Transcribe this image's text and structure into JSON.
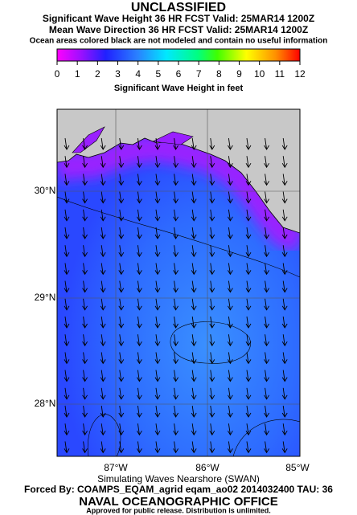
{
  "header": {
    "classification": "UNCLASSIFIED",
    "line1": "Significant Wave Height 36 HR FCST Valid: 25MAR14 1200Z",
    "line2": "Mean Wave Direction 36 HR FCST Valid: 25MAR14 1200Z",
    "note": "Ocean areas colored black are not modeled and contain no useful information"
  },
  "colorbar": {
    "ticks": [
      0,
      1,
      2,
      3,
      4,
      5,
      6,
      7,
      8,
      9,
      10,
      11,
      12
    ],
    "label": "Significant Wave Height in feet"
  },
  "map": {
    "lat_labels": [
      "30°N",
      "29°N",
      "28°N"
    ],
    "lon_labels": [
      "87°W",
      "86°W",
      "85°W"
    ]
  },
  "footer": {
    "model": "Simulating Waves Nearshore (SWAN)",
    "forcing": "Forced By: COAMPS_EQAM_agrid eqam_ao02 2014032400 TAU: 36",
    "office": "NAVAL OCEANOGRAPHIC OFFICE",
    "release": "Approved for public release. Distribution is unlimited."
  }
}
